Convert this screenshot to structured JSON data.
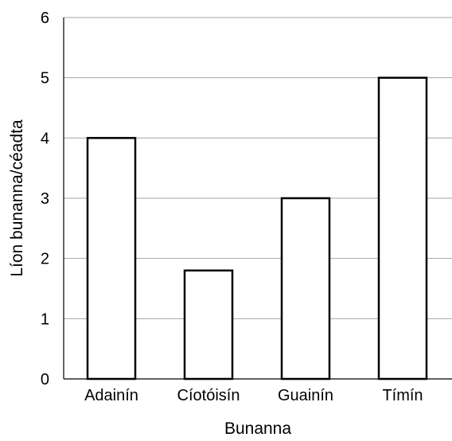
{
  "chart_data": {
    "type": "bar",
    "title": "",
    "categories": [
      "Adainín",
      "Cíotóisín",
      "Guainín",
      "Tímín"
    ],
    "values": [
      4,
      1.8,
      3,
      5
    ],
    "xlabel": "Bunanna",
    "ylabel": "Líon bunanna/céadta",
    "ylim": [
      0,
      6
    ],
    "yticks": [
      0,
      1,
      2,
      3,
      4,
      5,
      6
    ],
    "grid": true,
    "legend": "none",
    "colors": {
      "bar_fill": "#ffffff",
      "bar_stroke": "#000000",
      "grid": "#a6a6a6"
    }
  }
}
